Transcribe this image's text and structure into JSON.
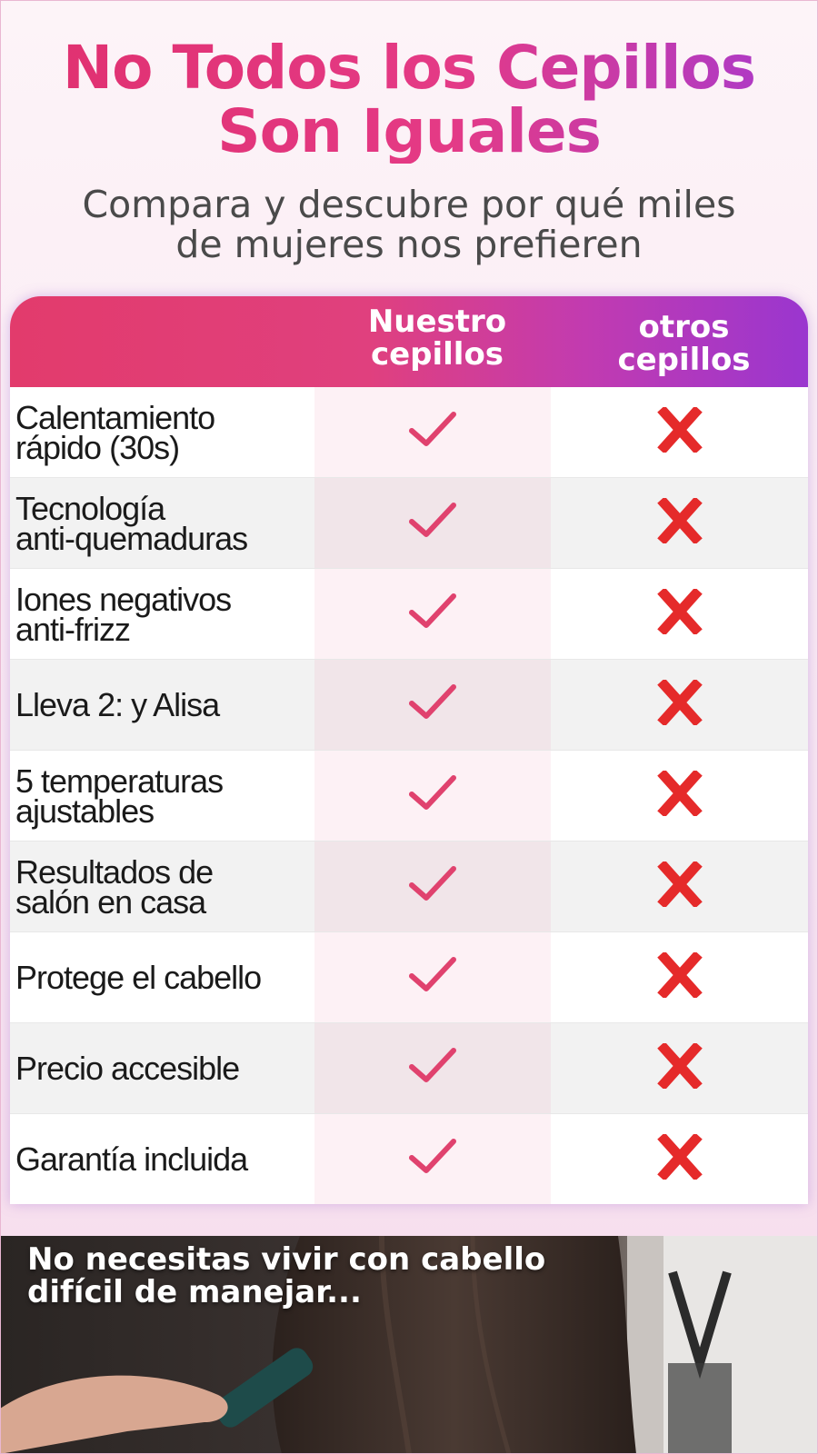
{
  "header": {
    "title_line1": "No Todos los Cepillos",
    "title_line2": "Son Iguales",
    "subtitle_line1": "Compara y descubre por qué miles",
    "subtitle_line2": "de mujeres nos prefieren"
  },
  "comparison": {
    "col_ours": "Nuestro\ncepillos",
    "col_others": "otros\ncepillos",
    "rows": [
      {
        "feature": "Calentamiento\nrápido (30s)",
        "ours": "check",
        "others": "cross"
      },
      {
        "feature": "Tecnología\nanti-quemaduras",
        "ours": "check",
        "others": "cross"
      },
      {
        "feature": "Iones negativos\nanti-frizz",
        "ours": "check",
        "others": "cross"
      },
      {
        "feature": "Lleva 2:  y Alisa",
        "ours": "check",
        "others": "cross"
      },
      {
        "feature": "5 temperaturas\najustables",
        "ours": "check",
        "others": "cross"
      },
      {
        "feature": "Resultados de\nsalón en casa",
        "ours": "check",
        "others": "cross"
      },
      {
        "feature": "Protege el cabello",
        "ours": "check",
        "others": "cross"
      },
      {
        "feature": "Precio accesible",
        "ours": "check",
        "others": "cross"
      },
      {
        "feature": "Garantía incluida",
        "ours": "check",
        "others": "cross"
      }
    ],
    "icons": {
      "check": "checkmark-icon",
      "cross": "x-icon"
    },
    "colors": {
      "check": "#e0426e",
      "cross": "#e52a2a",
      "accent_start": "#e23b6c",
      "accent_end": "#9a36cf"
    }
  },
  "banner": {
    "text": "No necesitas vivir con cabello\ndifícil de manejar..."
  }
}
